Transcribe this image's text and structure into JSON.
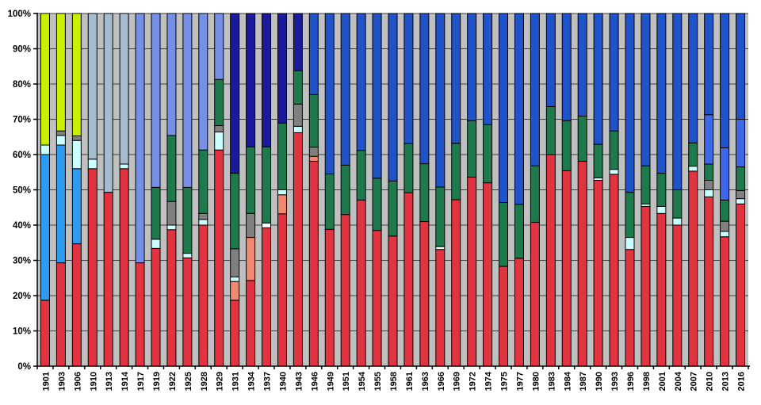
{
  "chart_data": {
    "type": "bar",
    "subtype": "stacked-100-percent",
    "title": "",
    "xlabel": "",
    "ylabel": "",
    "ylim": [
      0,
      100
    ],
    "y_tick_step": 10,
    "y_tick_labels": [
      "0%",
      "10%",
      "20%",
      "30%",
      "40%",
      "50%",
      "60%",
      "70%",
      "80%",
      "90%",
      "100%"
    ],
    "grid": true,
    "legend_position": "none",
    "plot_background": "#C0C0C0",
    "gridline_color": "#404040",
    "axis_color": "#000000",
    "label_color": "#000000",
    "palette": {
      "red": "#E23440",
      "chartreuse": "#C8F000",
      "dodger_blue": "#2D9BF0",
      "steel_blue": "#A6BCCE",
      "cornflower": "#7590E6",
      "navy": "#1A1A9A",
      "royal_blue": "#2052C8",
      "bright_blue": "#3E68E8",
      "dark_green": "#1E7A4C",
      "salmon": "#EF8A70",
      "pale_cyan": "#CCFFFF",
      "white": "#FFFFFF",
      "dark_gray": "#808080"
    },
    "categories": [
      "1901",
      "1903",
      "1906",
      "1910",
      "1913",
      "1914",
      "1917",
      "1919",
      "1922",
      "1925",
      "1928",
      "1929",
      "1931",
      "1934",
      "1937",
      "1940",
      "1943",
      "1946",
      "1949",
      "1951",
      "1954",
      "1955",
      "1958",
      "1961",
      "1963",
      "1966",
      "1969",
      "1972",
      "1974",
      "1975",
      "1977",
      "1980",
      "1983",
      "1984",
      "1987",
      "1990",
      "1993",
      "1996",
      "1998",
      "2001",
      "2004",
      "2007",
      "2010",
      "2013",
      "2016"
    ],
    "bars": [
      {
        "year": "1901",
        "segments": [
          [
            "red",
            18.7
          ],
          [
            "dodger_blue",
            41.3
          ],
          [
            "pale_cyan",
            2.7
          ],
          [
            "chartreuse",
            37.3
          ]
        ]
      },
      {
        "year": "1903",
        "segments": [
          [
            "red",
            29.3
          ],
          [
            "dodger_blue",
            33.4
          ],
          [
            "pale_cyan",
            2.7
          ],
          [
            "dark_gray",
            1.3
          ],
          [
            "chartreuse",
            33.3
          ]
        ]
      },
      {
        "year": "1906",
        "segments": [
          [
            "red",
            34.7
          ],
          [
            "dodger_blue",
            21.3
          ],
          [
            "pale_cyan",
            8.0
          ],
          [
            "dark_gray",
            1.3
          ],
          [
            "chartreuse",
            34.7
          ]
        ]
      },
      {
        "year": "1910",
        "segments": [
          [
            "red",
            56.0
          ],
          [
            "pale_cyan",
            2.7
          ],
          [
            "steel_blue",
            41.3
          ]
        ]
      },
      {
        "year": "1913",
        "segments": [
          [
            "red",
            49.3
          ],
          [
            "steel_blue",
            50.7
          ]
        ]
      },
      {
        "year": "1914",
        "segments": [
          [
            "red",
            56.0
          ],
          [
            "pale_cyan",
            1.3
          ],
          [
            "steel_blue",
            42.7
          ]
        ]
      },
      {
        "year": "1917",
        "segments": [
          [
            "red",
            29.3
          ],
          [
            "cornflower",
            70.7
          ]
        ]
      },
      {
        "year": "1919",
        "segments": [
          [
            "red",
            33.4
          ],
          [
            "pale_cyan",
            2.6
          ],
          [
            "dark_green",
            14.7
          ],
          [
            "cornflower",
            49.3
          ]
        ]
      },
      {
        "year": "1922",
        "segments": [
          [
            "red",
            38.7
          ],
          [
            "pale_cyan",
            1.3
          ],
          [
            "dark_gray",
            6.7
          ],
          [
            "dark_green",
            18.7
          ],
          [
            "cornflower",
            34.6
          ]
        ]
      },
      {
        "year": "1925",
        "segments": [
          [
            "red",
            30.7
          ],
          [
            "pale_cyan",
            1.3
          ],
          [
            "dark_green",
            18.7
          ],
          [
            "cornflower",
            49.3
          ]
        ]
      },
      {
        "year": "1928",
        "segments": [
          [
            "red",
            40.0
          ],
          [
            "pale_cyan",
            1.6
          ],
          [
            "dark_gray",
            1.7
          ],
          [
            "dark_green",
            18.0
          ],
          [
            "cornflower",
            38.7
          ]
        ]
      },
      {
        "year": "1929",
        "segments": [
          [
            "red",
            61.3
          ],
          [
            "pale_cyan",
            5.1
          ],
          [
            "dark_gray",
            1.8
          ],
          [
            "dark_green",
            13.1
          ],
          [
            "cornflower",
            18.7
          ]
        ]
      },
      {
        "year": "1931",
        "segments": [
          [
            "red",
            18.7
          ],
          [
            "salmon",
            5.3
          ],
          [
            "pale_cyan",
            1.3
          ],
          [
            "dark_gray",
            8.0
          ],
          [
            "dark_green",
            21.4
          ],
          [
            "navy",
            45.3
          ]
        ]
      },
      {
        "year": "1934",
        "segments": [
          [
            "red",
            24.3
          ],
          [
            "salmon",
            12.2
          ],
          [
            "dark_gray",
            6.8
          ],
          [
            "dark_green",
            18.9
          ],
          [
            "navy",
            37.8
          ]
        ]
      },
      {
        "year": "1937",
        "segments": [
          [
            "red",
            39.2
          ],
          [
            "white",
            1.4
          ],
          [
            "dark_green",
            21.6
          ],
          [
            "navy",
            37.8
          ]
        ]
      },
      {
        "year": "1940",
        "segments": [
          [
            "red",
            43.2
          ],
          [
            "salmon",
            5.4
          ],
          [
            "pale_cyan",
            1.4
          ],
          [
            "dark_green",
            18.9
          ],
          [
            "navy",
            31.1
          ]
        ]
      },
      {
        "year": "1943",
        "segments": [
          [
            "red",
            66.2
          ],
          [
            "pale_cyan",
            1.8
          ],
          [
            "dark_gray",
            6.3
          ],
          [
            "dark_green",
            9.5
          ],
          [
            "navy",
            16.2
          ]
        ]
      },
      {
        "year": "1946",
        "segments": [
          [
            "red",
            58.1
          ],
          [
            "salmon",
            1.4
          ],
          [
            "dark_gray",
            2.6
          ],
          [
            "dark_green",
            14.9
          ],
          [
            "royal_blue",
            23.0
          ]
        ]
      },
      {
        "year": "1949",
        "segments": [
          [
            "red",
            38.8
          ],
          [
            "dark_green",
            15.7
          ],
          [
            "royal_blue",
            45.5
          ]
        ]
      },
      {
        "year": "1951",
        "segments": [
          [
            "red",
            43.0
          ],
          [
            "dark_green",
            14.0
          ],
          [
            "royal_blue",
            43.0
          ]
        ]
      },
      {
        "year": "1954",
        "segments": [
          [
            "red",
            47.1
          ],
          [
            "dark_green",
            14.1
          ],
          [
            "royal_blue",
            38.8
          ]
        ]
      },
      {
        "year": "1955",
        "segments": [
          [
            "red",
            38.5
          ],
          [
            "dark_green",
            14.8
          ],
          [
            "royal_blue",
            46.7
          ]
        ]
      },
      {
        "year": "1958",
        "segments": [
          [
            "red",
            36.9
          ],
          [
            "dark_green",
            15.6
          ],
          [
            "royal_blue",
            47.5
          ]
        ]
      },
      {
        "year": "1961",
        "segments": [
          [
            "red",
            49.2
          ],
          [
            "dark_green",
            13.9
          ],
          [
            "royal_blue",
            36.9
          ]
        ]
      },
      {
        "year": "1963",
        "segments": [
          [
            "red",
            41.0
          ],
          [
            "dark_green",
            16.4
          ],
          [
            "royal_blue",
            42.6
          ]
        ]
      },
      {
        "year": "1966",
        "segments": [
          [
            "red",
            33.1
          ],
          [
            "white",
            0.8
          ],
          [
            "dark_green",
            16.9
          ],
          [
            "royal_blue",
            49.2
          ]
        ]
      },
      {
        "year": "1969",
        "segments": [
          [
            "red",
            47.2
          ],
          [
            "dark_green",
            16.0
          ],
          [
            "royal_blue",
            36.8
          ]
        ]
      },
      {
        "year": "1972",
        "segments": [
          [
            "red",
            53.6
          ],
          [
            "dark_green",
            16.0
          ],
          [
            "royal_blue",
            30.4
          ]
        ]
      },
      {
        "year": "1974",
        "segments": [
          [
            "red",
            52.0
          ],
          [
            "dark_green",
            16.5
          ],
          [
            "royal_blue",
            31.5
          ]
        ]
      },
      {
        "year": "1975",
        "segments": [
          [
            "red",
            28.3
          ],
          [
            "dark_green",
            18.1
          ],
          [
            "royal_blue",
            53.6
          ]
        ]
      },
      {
        "year": "1977",
        "segments": [
          [
            "red",
            30.6
          ],
          [
            "dark_green",
            15.3
          ],
          [
            "royal_blue",
            54.1
          ]
        ]
      },
      {
        "year": "1980",
        "segments": [
          [
            "red",
            40.8
          ],
          [
            "dark_green",
            16.0
          ],
          [
            "royal_blue",
            43.2
          ]
        ]
      },
      {
        "year": "1983",
        "segments": [
          [
            "red",
            60.0
          ],
          [
            "dark_green",
            13.6
          ],
          [
            "royal_blue",
            26.4
          ]
        ]
      },
      {
        "year": "1984",
        "segments": [
          [
            "red",
            55.4
          ],
          [
            "dark_green",
            14.2
          ],
          [
            "royal_blue",
            30.4
          ]
        ]
      },
      {
        "year": "1987",
        "segments": [
          [
            "red",
            58.1
          ],
          [
            "dark_green",
            12.8
          ],
          [
            "royal_blue",
            29.1
          ]
        ]
      },
      {
        "year": "1990",
        "segments": [
          [
            "red",
            52.7
          ],
          [
            "pale_cyan",
            0.7
          ],
          [
            "dark_green",
            9.5
          ],
          [
            "royal_blue",
            37.1
          ]
        ]
      },
      {
        "year": "1993",
        "segments": [
          [
            "red",
            54.4
          ],
          [
            "pale_cyan",
            1.4
          ],
          [
            "dark_green",
            10.9
          ],
          [
            "royal_blue",
            33.3
          ]
        ]
      },
      {
        "year": "1996",
        "segments": [
          [
            "red",
            33.1
          ],
          [
            "pale_cyan",
            3.4
          ],
          [
            "dark_green",
            12.8
          ],
          [
            "royal_blue",
            50.7
          ]
        ]
      },
      {
        "year": "1998",
        "segments": [
          [
            "red",
            45.3
          ],
          [
            "pale_cyan",
            0.7
          ],
          [
            "dark_green",
            10.8
          ],
          [
            "royal_blue",
            43.2
          ]
        ]
      },
      {
        "year": "2001",
        "segments": [
          [
            "red",
            43.3
          ],
          [
            "pale_cyan",
            2.0
          ],
          [
            "dark_green",
            9.4
          ],
          [
            "royal_blue",
            45.3
          ]
        ]
      },
      {
        "year": "2004",
        "segments": [
          [
            "red",
            40.0
          ],
          [
            "pale_cyan",
            2.0
          ],
          [
            "dark_green",
            8.0
          ],
          [
            "royal_blue",
            50.0
          ]
        ]
      },
      {
        "year": "2007",
        "segments": [
          [
            "red",
            55.3
          ],
          [
            "pale_cyan",
            1.4
          ],
          [
            "dark_green",
            6.6
          ],
          [
            "royal_blue",
            36.7
          ]
        ]
      },
      {
        "year": "2010",
        "segments": [
          [
            "red",
            48.0
          ],
          [
            "pale_cyan",
            2.0
          ],
          [
            "dark_gray",
            2.7
          ],
          [
            "dark_green",
            4.6
          ],
          [
            "bright_blue",
            14.0
          ],
          [
            "royal_blue",
            28.7
          ]
        ]
      },
      {
        "year": "2013",
        "segments": [
          [
            "red",
            36.7
          ],
          [
            "pale_cyan",
            1.5
          ],
          [
            "dark_gray",
            2.9
          ],
          [
            "dark_green",
            6.0
          ],
          [
            "bright_blue",
            14.8
          ],
          [
            "royal_blue",
            38.1
          ]
        ]
      },
      {
        "year": "2016",
        "segments": [
          [
            "red",
            46.0
          ],
          [
            "pale_cyan",
            1.5
          ],
          [
            "dark_gray",
            2.3
          ],
          [
            "dark_green",
            6.7
          ],
          [
            "bright_blue",
            13.5
          ],
          [
            "royal_blue",
            30.0
          ]
        ]
      }
    ]
  }
}
